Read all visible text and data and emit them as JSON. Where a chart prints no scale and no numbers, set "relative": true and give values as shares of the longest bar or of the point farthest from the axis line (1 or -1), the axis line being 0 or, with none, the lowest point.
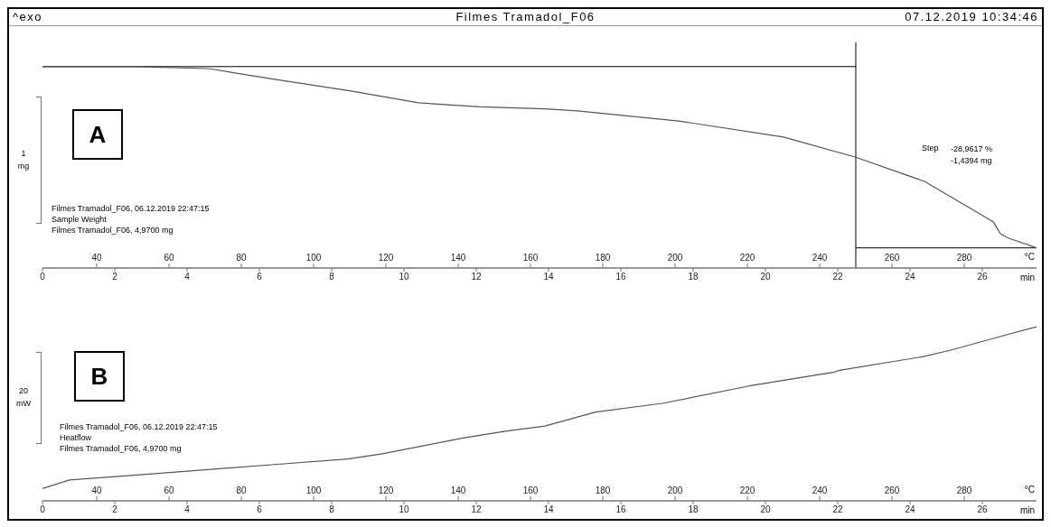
{
  "chart_data": [
    {
      "type": "line",
      "title": "Filmes Tramadol_F06",
      "relative": true,
      "ylabel": "1 mg",
      "xlabel": "min",
      "x2label": "°C",
      "marker": "none",
      "xlim": [
        0,
        27.5
      ],
      "xticks": [
        0,
        2,
        4,
        6,
        8,
        10,
        12,
        14,
        16,
        18,
        20,
        22,
        24,
        26
      ],
      "x2lim": [
        25,
        300
      ],
      "x2ticks": [
        40,
        60,
        80,
        100,
        120,
        140,
        160,
        180,
        200,
        220,
        240,
        260,
        280
      ],
      "series": [
        {
          "color": "#555555",
          "x": [
            0,
            2.6,
            4.6,
            6.3,
            8.5,
            10.4,
            12.1,
            13.9,
            14.8,
            17.6,
            20.5,
            22.5,
            24.4,
            26.3,
            26.5,
            26.7,
            27.5
          ],
          "values": [
            1,
            1,
            0.99,
            0.94,
            0.88,
            0.82,
            0.8,
            0.79,
            0.78,
            0.73,
            0.65,
            0.55,
            0.43,
            0.23,
            0.17,
            0.15,
            0.1
          ]
        }
      ],
      "ref_lines": [
        {
          "axis": "y",
          "value": 1,
          "color": "#000000"
        },
        {
          "axis": "x",
          "value": 22.5,
          "color": "#000000"
        },
        {
          "axis": "y",
          "value": 0.1,
          "color": "#000000"
        }
      ],
      "annotations": [
        "^exo",
        "07.12.2019 10:34:46",
        "A",
        "Filmes Tramadol_F06, 06.12.2019 22:47:15\nSample Weight\nFilmes Tramadol_F06, 4,9700 mg",
        "Step",
        "-28,9617 %\n-1,4394 mg"
      ]
    },
    {
      "type": "line",
      "relative": true,
      "ylabel": "20 mW",
      "xlabel": "min",
      "x2label": "°C",
      "marker": "none",
      "xlim": [
        0,
        27.5
      ],
      "xticks": [
        0,
        2,
        4,
        6,
        8,
        10,
        12,
        14,
        16,
        18,
        20,
        22,
        24,
        26
      ],
      "x2lim": [
        25,
        300
      ],
      "x2ticks": [
        40,
        60,
        80,
        100,
        120,
        140,
        160,
        180,
        200,
        220,
        240,
        260,
        280
      ],
      "series": [
        {
          "color": "#555555",
          "x": [
            0,
            0.75,
            2.7,
            6.5,
            8.45,
            9.4,
            11.6,
            12.8,
            13.9,
            15.3,
            17.15,
            19.55,
            21.9,
            22.05,
            24.4,
            25.2,
            26.6,
            27.5
          ],
          "values": [
            0.07,
            0.12,
            0.15,
            0.21,
            0.24,
            0.27,
            0.36,
            0.4,
            0.43,
            0.51,
            0.56,
            0.66,
            0.74,
            0.75,
            0.83,
            0.87,
            0.95,
            1
          ]
        }
      ],
      "annotations": [
        "B",
        "Filmes Tramadol_F06, 06.12.2019 22:47:15\nHeatflow\nFilmes Tramadol_F06, 4,9700 mg"
      ]
    }
  ]
}
